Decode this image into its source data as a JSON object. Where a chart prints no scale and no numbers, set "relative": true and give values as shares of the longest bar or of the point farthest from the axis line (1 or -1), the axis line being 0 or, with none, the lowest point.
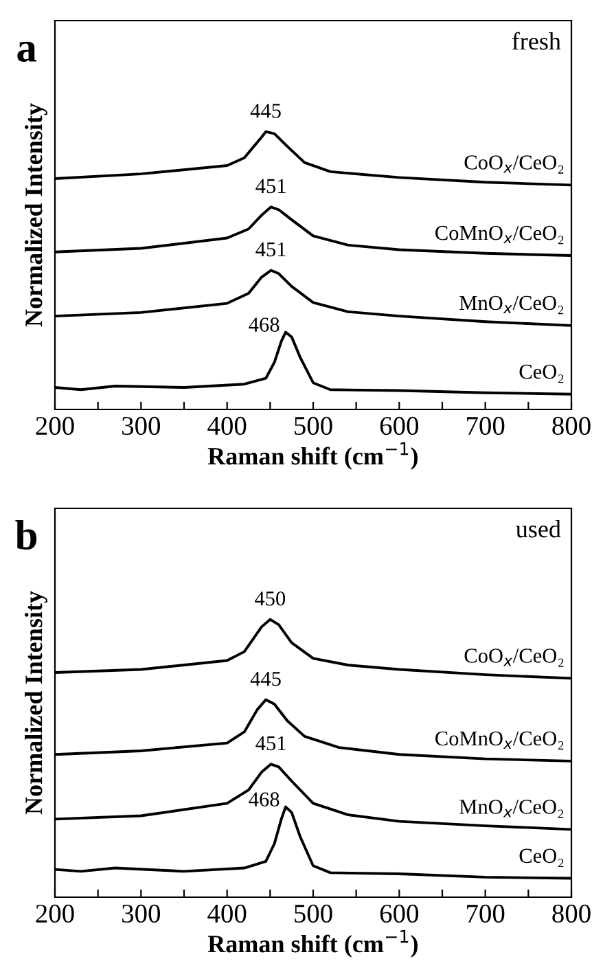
{
  "chart_data": [
    {
      "type": "line",
      "relative": true,
      "xlabel": "Raman shift (cm$^{−1}$)",
      "ylabel": "Normalized Intensity",
      "xlim": [
        200,
        800
      ],
      "xticks": [
        200,
        {
          "value": 250,
          "label": null
        },
        300,
        {
          "value": 350,
          "label": null
        },
        400,
        {
          "value": 450,
          "label": null
        },
        500,
        {
          "value": 550,
          "label": null
        },
        600,
        {
          "value": 650,
          "label": null
        },
        700,
        {
          "value": 750,
          "label": null
        },
        800
      ],
      "legend": false,
      "grid": false,
      "marker": "none",
      "line_style": "solid",
      "annotations": [
        "a",
        "fresh",
        {
          "text": "445",
          "x": 445,
          "y": 1.0
        },
        {
          "text": "451",
          "x": 451,
          "y": 0.729
        },
        {
          "text": "451",
          "x": 451,
          "y": 0.501
        },
        {
          "text": "468",
          "x": 468,
          "y": 0.278
        }
      ],
      "series": [
        {
          "name": "CoO$_{x}$/CeO₂",
          "color": "#000000",
          "x": [
            200,
            300,
            400,
            420,
            440,
            445,
            455,
            470,
            490,
            520,
            600,
            700,
            800
          ],
          "values": [
            0.831,
            0.848,
            0.878,
            0.906,
            0.98,
            1.0,
            0.993,
            0.947,
            0.889,
            0.856,
            0.835,
            0.818,
            0.808
          ]
        },
        {
          "name": "CoMnO$_{x}$/CeO₂",
          "color": "#000000",
          "x": [
            200,
            300,
            400,
            425,
            440,
            451,
            460,
            475,
            500,
            540,
            600,
            700,
            800
          ],
          "values": [
            0.567,
            0.58,
            0.617,
            0.65,
            0.699,
            0.729,
            0.719,
            0.683,
            0.625,
            0.592,
            0.575,
            0.562,
            0.554
          ]
        },
        {
          "name": "MnO$_{x}$/CeO₂",
          "color": "#000000",
          "x": [
            200,
            300,
            400,
            425,
            440,
            451,
            460,
            475,
            500,
            540,
            600,
            700,
            800
          ],
          "values": [
            0.336,
            0.349,
            0.382,
            0.418,
            0.476,
            0.501,
            0.489,
            0.443,
            0.385,
            0.352,
            0.336,
            0.316,
            0.302
          ]
        },
        {
          "name": "CeO₂",
          "color": "#000000",
          "x": [
            200,
            230,
            270,
            350,
            420,
            445,
            455,
            463,
            468,
            475,
            485,
            500,
            520,
            600,
            700,
            800
          ],
          "values": [
            0.079,
            0.071,
            0.084,
            0.079,
            0.091,
            0.112,
            0.17,
            0.245,
            0.278,
            0.261,
            0.187,
            0.096,
            0.071,
            0.068,
            0.06,
            0.055
          ]
        }
      ]
    },
    {
      "type": "line",
      "relative": true,
      "xlabel": "Raman shift (cm$^{−1}$)",
      "ylabel": "Normalized Intensity",
      "xlim": [
        200,
        800
      ],
      "xticks": [
        200,
        {
          "value": 250,
          "label": null
        },
        300,
        {
          "value": 350,
          "label": null
        },
        400,
        {
          "value": 450,
          "label": null
        },
        500,
        {
          "value": 550,
          "label": null
        },
        600,
        {
          "value": 650,
          "label": null
        },
        700,
        {
          "value": 750,
          "label": null
        },
        800
      ],
      "legend": false,
      "grid": false,
      "marker": "none",
      "line_style": "solid",
      "annotations": [
        "b",
        "used",
        {
          "text": "450",
          "x": 450,
          "y": 1.0
        },
        {
          "text": "445",
          "x": 445,
          "y": 0.711
        },
        {
          "text": "451",
          "x": 451,
          "y": 0.479
        },
        {
          "text": "468",
          "x": 468,
          "y": 0.325
        }
      ],
      "series": [
        {
          "name": "CoO$_{x}$/CeO₂",
          "color": "#000000",
          "x": [
            200,
            300,
            400,
            420,
            440,
            450,
            460,
            475,
            500,
            540,
            600,
            700,
            800
          ],
          "values": [
            0.809,
            0.82,
            0.852,
            0.884,
            0.973,
            1.0,
            0.981,
            0.916,
            0.86,
            0.836,
            0.82,
            0.801,
            0.788
          ]
        },
        {
          "name": "CoMnO$_{x}$/CeO₂",
          "color": "#000000",
          "x": [
            200,
            300,
            400,
            420,
            435,
            445,
            455,
            470,
            490,
            530,
            600,
            700,
            800
          ],
          "values": [
            0.514,
            0.527,
            0.555,
            0.595,
            0.675,
            0.711,
            0.695,
            0.635,
            0.579,
            0.539,
            0.514,
            0.498,
            0.49
          ]
        },
        {
          "name": "MnO$_{x}$/CeO₂",
          "color": "#000000",
          "x": [
            200,
            300,
            400,
            425,
            440,
            451,
            460,
            475,
            500,
            540,
            600,
            700,
            800
          ],
          "values": [
            0.281,
            0.293,
            0.338,
            0.386,
            0.45,
            0.479,
            0.469,
            0.418,
            0.338,
            0.297,
            0.273,
            0.257,
            0.244
          ]
        },
        {
          "name": "CeO₂",
          "color": "#000000",
          "x": [
            200,
            230,
            270,
            350,
            420,
            445,
            455,
            463,
            468,
            475,
            485,
            500,
            520,
            600,
            700,
            800
          ],
          "values": [
            0.1,
            0.093,
            0.105,
            0.093,
            0.105,
            0.129,
            0.193,
            0.281,
            0.325,
            0.305,
            0.217,
            0.113,
            0.088,
            0.084,
            0.072,
            0.068
          ]
        }
      ]
    }
  ]
}
